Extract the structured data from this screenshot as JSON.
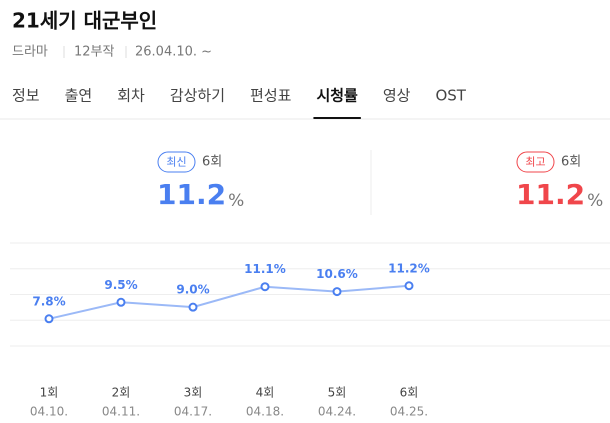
{
  "header": {
    "title": "21세기 대군부인",
    "genre": "드라마",
    "episodes": "12부작",
    "airdate": "26.04.10. ~"
  },
  "tabs": [
    "정보",
    "출연",
    "회차",
    "감상하기",
    "편성표",
    "시청률",
    "영상",
    "OST"
  ],
  "active_tab": 5,
  "stats": {
    "latest": {
      "badge": "최신",
      "episode": "6회",
      "value": 11.2,
      "unit": "%",
      "color": "#4a7ff0"
    },
    "highest": {
      "badge": "최고",
      "episode": "6회",
      "value": 11.2,
      "unit": "%",
      "color": "#f0464b"
    }
  },
  "chart_data": {
    "type": "line",
    "categories": [
      "1회",
      "2회",
      "3회",
      "4회",
      "5회",
      "6회"
    ],
    "dates": [
      "04.10.",
      "04.11.",
      "04.17.",
      "04.18.",
      "04.24.",
      "04.25."
    ],
    "series": [
      {
        "color": "#9bb9f7",
        "values": [
          7.8,
          9.5,
          9.0,
          11.1,
          10.6,
          11.2
        ],
        "value_labels": [
          "7.8%",
          "9.5%",
          "9.0%",
          "11.1%",
          "10.6%",
          "11.2%"
        ]
      }
    ],
    "ylim": [
      5,
      15.6
    ],
    "grid": true
  }
}
